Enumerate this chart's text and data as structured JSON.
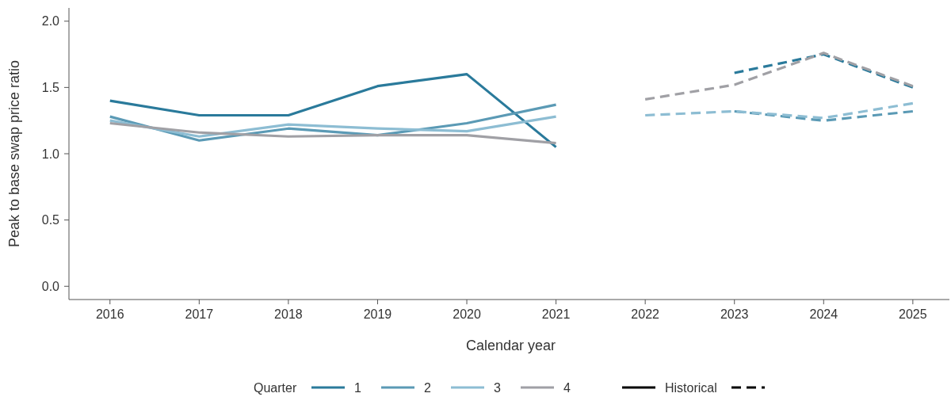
{
  "chart_data": {
    "type": "line",
    "xlabel": "Calendar year",
    "ylabel": "Peak to base swap price ratio",
    "legend_title": "Quarter",
    "legend": "bottom",
    "grid": false,
    "line_style": "solid",
    "marker": "none",
    "x": [
      2016,
      2017,
      2018,
      2019,
      2020,
      2021,
      2022,
      2023,
      2024,
      2025
    ],
    "xlim": [
      2015.54,
      2025.41
    ],
    "xticks": [
      2016,
      2017,
      2018,
      2019,
      2020,
      2021,
      2022,
      2023,
      2024,
      2025
    ],
    "ylim": [
      -0.1,
      2.1
    ],
    "yticks": [
      {
        "value": 0,
        "label": "0.0"
      },
      {
        "value": 0.5,
        "label": "0.5"
      },
      {
        "value": 1,
        "label": "1.0"
      },
      {
        "value": 1.5,
        "label": "1.5"
      },
      {
        "value": 2,
        "label": "2.0"
      }
    ],
    "series": [
      {
        "name": "1",
        "color": "#2a7a9b",
        "values": [
          1.4,
          1.29,
          1.29,
          1.51,
          1.6,
          1.05,
          null,
          null,
          null,
          null
        ]
      },
      {
        "name": "2",
        "color": "#5b9ab5",
        "values": [
          1.28,
          1.1,
          1.19,
          1.14,
          1.23,
          1.37,
          null,
          null,
          null,
          null
        ]
      },
      {
        "name": "3",
        "color": "#8dbdd3",
        "values": [
          1.25,
          1.13,
          1.22,
          1.19,
          1.17,
          1.28,
          null,
          null,
          null,
          null
        ]
      },
      {
        "name": "4",
        "color": "#a0a0a5",
        "values": [
          1.23,
          1.16,
          1.13,
          1.14,
          1.14,
          1.08,
          null,
          null,
          null,
          null
        ]
      },
      {
        "color": "#2a7a9b",
        "line_style": "dashed",
        "values": [
          null,
          null,
          null,
          null,
          null,
          null,
          null,
          1.61,
          1.75,
          1.5
        ]
      },
      {
        "color": "#5b9ab5",
        "line_style": "dashed",
        "values": [
          null,
          null,
          null,
          null,
          null,
          null,
          null,
          1.32,
          1.25,
          1.32
        ]
      },
      {
        "color": "#8dbdd3",
        "line_style": "dashed",
        "values": [
          null,
          null,
          null,
          null,
          null,
          null,
          1.29,
          1.32,
          1.27,
          1.38
        ]
      },
      {
        "color": "#a0a0a5",
        "line_style": "dashed",
        "values": [
          null,
          null,
          null,
          null,
          null,
          null,
          1.41,
          1.52,
          1.76,
          1.51
        ]
      }
    ],
    "annotations": [
      "Historical"
    ]
  }
}
